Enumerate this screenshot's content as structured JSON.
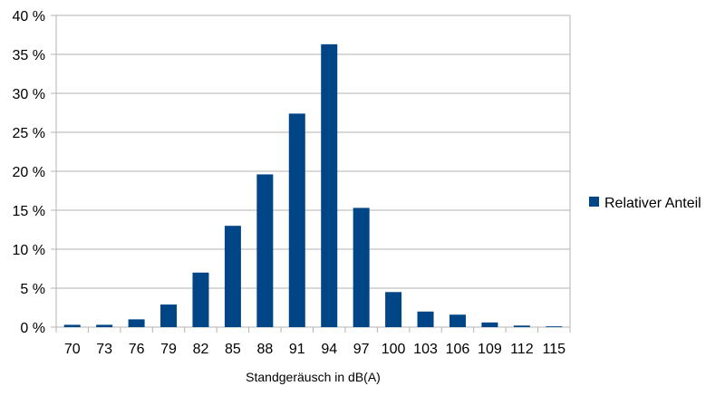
{
  "chart_data": {
    "type": "bar",
    "xlabel": "Standgeräusch in dB(A)",
    "ylabel": "",
    "ylim": [
      0,
      40
    ],
    "yticks": [
      "0 %",
      "5 %",
      "10 %",
      "15 %",
      "20 %",
      "25 %",
      "30 %",
      "35 %",
      "40 %"
    ],
    "categories": [
      "70",
      "73",
      "76",
      "79",
      "82",
      "85",
      "88",
      "91",
      "94",
      "97",
      "100",
      "103",
      "106",
      "109",
      "112",
      "115"
    ],
    "series": [
      {
        "name": "Relativer Anteil",
        "color": "#004586",
        "values": [
          0.3,
          0.3,
          1.0,
          2.9,
          7.0,
          13.0,
          19.6,
          27.4,
          36.3,
          15.3,
          4.5,
          2.0,
          1.6,
          0.6,
          0.2,
          0.1
        ]
      }
    ],
    "grid": true,
    "legend_position": "right"
  }
}
